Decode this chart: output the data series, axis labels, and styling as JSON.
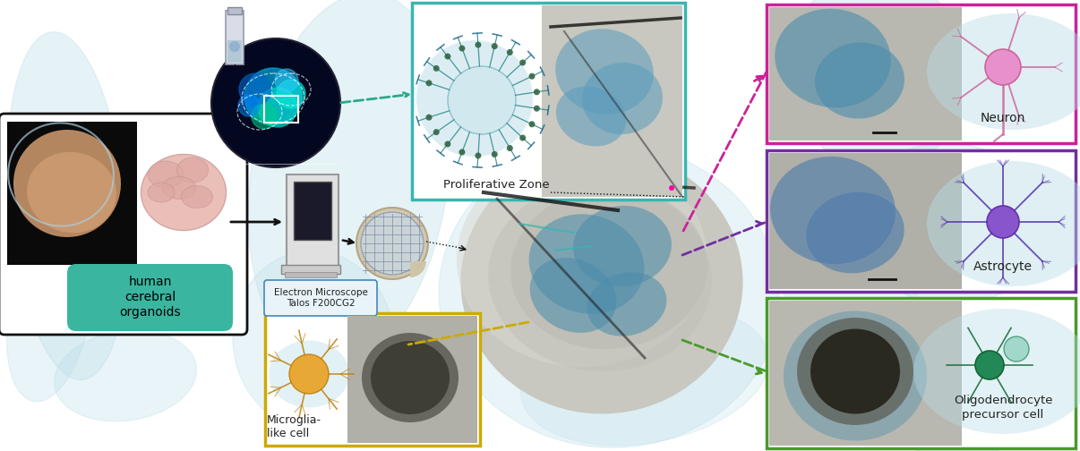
{
  "fig_width": 12.06,
  "fig_height": 5.04,
  "bg_color": "#ffffff",
  "blob_color": "#b8dde8",
  "blob_alpha": 0.5,
  "teal_box_color": "#3ab5b0",
  "pink_box_color": "#cc2299",
  "purple_box_color": "#7030a0",
  "green_box_color": "#4a9a2a",
  "yellow_box_color": "#ccaa00",
  "organoid_box_color": "#111111",
  "teal_label_bg": "#3ab5a0",
  "em_label_bg": "#e8f4fa",
  "em_label_border": "#4488bb",
  "labels": {
    "organoids": "human\ncerebral\norganoids",
    "em": "Electron Microscope\nTalos F200CG2",
    "proliferative": "Proliferative Zone",
    "microglia": "Microglia-\nlike cell",
    "neuron": "Neuron",
    "astrocyte": "Astrocyte",
    "oligo": "Oligodendrocyte\nprecursor cell"
  },
  "arrow_color": "#111111",
  "dashed_teal": "#2aaa88",
  "dashed_pink": "#cc2299",
  "dashed_purple": "#7030a0",
  "dashed_yellow": "#ccaa00",
  "dashed_green": "#4a9a2a"
}
